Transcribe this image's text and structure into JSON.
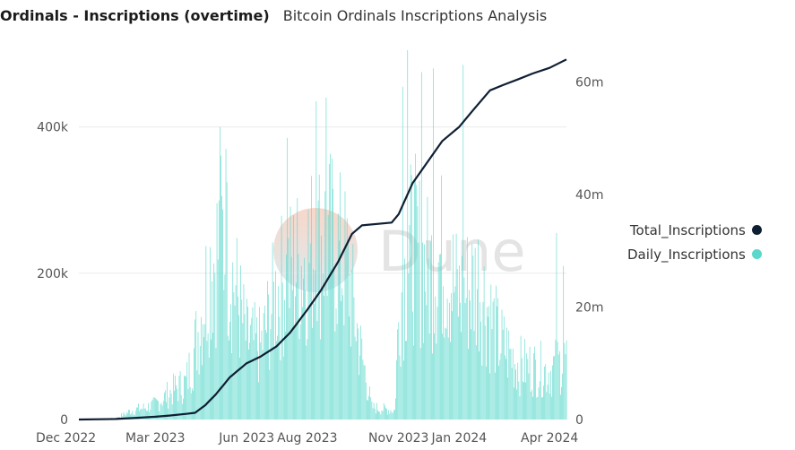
{
  "header": {
    "title": "Ordinals - Inscriptions (overtime)",
    "subtitle": "Bitcoin Ordinals Inscriptions Analysis"
  },
  "watermark": {
    "text": "Dune"
  },
  "colors": {
    "daily": "#5ad8cc",
    "total": "#0f1f33",
    "grid": "#ececec"
  },
  "chart_data": {
    "type": "bar",
    "x_start": "2022-12-14",
    "x_end": "2024-04-18",
    "x_ticks": [
      {
        "date": "2022-12-01",
        "label": "Dec 2022"
      },
      {
        "date": "2023-03-01",
        "label": "Mar 2023"
      },
      {
        "date": "2023-06-01",
        "label": "Jun 2023"
      },
      {
        "date": "2023-08-01",
        "label": "Aug 2023"
      },
      {
        "date": "2023-11-01",
        "label": "Nov 2023"
      },
      {
        "date": "2024-01-01",
        "label": "Jan 2024"
      },
      {
        "date": "2024-04-01",
        "label": "Apr 2024"
      }
    ],
    "y_left": {
      "range": [
        0,
        500000
      ],
      "ticks": [
        {
          "v": 0,
          "label": "0"
        },
        {
          "v": 200000,
          "label": "200k"
        },
        {
          "v": 400000,
          "label": "400k"
        }
      ]
    },
    "y_right": {
      "range": [
        0,
        65000000
      ],
      "ticks": [
        {
          "v": 0,
          "label": "0"
        },
        {
          "v": 20000000,
          "label": "20m"
        },
        {
          "v": 40000000,
          "label": "40m"
        },
        {
          "v": 60000000,
          "label": "60m"
        }
      ]
    },
    "grid": true,
    "legend_position": "right",
    "series": [
      {
        "name": "Total_Inscriptions",
        "type": "line",
        "axis": "right",
        "points": [
          [
            "2022-12-14",
            0
          ],
          [
            "2023-01-20",
            0.1
          ],
          [
            "2023-02-10",
            0.3
          ],
          [
            "2023-03-01",
            0.5
          ],
          [
            "2023-03-15",
            0.7
          ],
          [
            "2023-04-01",
            1.0
          ],
          [
            "2023-04-10",
            1.2
          ],
          [
            "2023-04-20",
            2.5
          ],
          [
            "2023-05-01",
            4.5
          ],
          [
            "2023-05-15",
            7.5
          ],
          [
            "2023-06-01",
            10.0
          ],
          [
            "2023-06-15",
            11.2
          ],
          [
            "2023-07-01",
            13.0
          ],
          [
            "2023-07-15",
            15.5
          ],
          [
            "2023-08-01",
            19.5
          ],
          [
            "2023-08-15",
            23.0
          ],
          [
            "2023-09-01",
            28.0
          ],
          [
            "2023-09-15",
            33.0
          ],
          [
            "2023-09-25",
            34.5
          ],
          [
            "2023-10-25",
            35.0
          ],
          [
            "2023-11-01",
            36.5
          ],
          [
            "2023-11-15",
            42.0
          ],
          [
            "2023-12-01",
            46.0
          ],
          [
            "2023-12-15",
            49.5
          ],
          [
            "2024-01-01",
            52.0
          ],
          [
            "2024-01-15",
            55.0
          ],
          [
            "2024-02-01",
            58.5
          ],
          [
            "2024-02-15",
            59.5
          ],
          [
            "2024-03-01",
            60.5
          ],
          [
            "2024-03-15",
            61.5
          ],
          [
            "2024-04-01",
            62.5
          ],
          [
            "2024-04-18",
            64.0
          ]
        ],
        "unit": "millions"
      },
      {
        "name": "Daily_Inscriptions",
        "type": "bar",
        "axis": "left",
        "profile": [
          [
            "2022-12-14",
            0
          ],
          [
            "2023-01-20",
            2
          ],
          [
            "2023-02-05",
            15
          ],
          [
            "2023-02-20",
            20
          ],
          [
            "2023-03-01",
            25
          ],
          [
            "2023-03-20",
            50
          ],
          [
            "2023-04-01",
            60
          ],
          [
            "2023-04-10",
            120
          ],
          [
            "2023-04-25",
            250
          ],
          [
            "2023-05-08",
            300
          ],
          [
            "2023-05-20",
            220
          ],
          [
            "2023-06-01",
            130
          ],
          [
            "2023-06-15",
            120
          ],
          [
            "2023-07-01",
            210
          ],
          [
            "2023-07-15",
            240
          ],
          [
            "2023-08-01",
            270
          ],
          [
            "2023-08-20",
            300
          ],
          [
            "2023-09-10",
            250
          ],
          [
            "2023-09-22",
            130
          ],
          [
            "2023-10-05",
            20
          ],
          [
            "2023-10-28",
            15
          ],
          [
            "2023-11-02",
            200
          ],
          [
            "2023-11-15",
            290
          ],
          [
            "2023-12-01",
            240
          ],
          [
            "2023-12-15",
            270
          ],
          [
            "2024-01-01",
            200
          ],
          [
            "2024-01-20",
            230
          ],
          [
            "2024-02-10",
            130
          ],
          [
            "2024-03-01",
            90
          ],
          [
            "2024-04-01",
            80
          ],
          [
            "2024-04-18",
            100
          ]
        ],
        "peaks": [
          [
            "2023-05-05",
            400
          ],
          [
            "2023-05-11",
            370
          ],
          [
            "2023-07-12",
            385
          ],
          [
            "2023-08-10",
            435
          ],
          [
            "2023-08-20",
            440
          ],
          [
            "2023-11-05",
            455
          ],
          [
            "2023-11-10",
            505
          ],
          [
            "2023-11-24",
            475
          ],
          [
            "2023-12-06",
            480
          ],
          [
            "2024-01-05",
            485
          ],
          [
            "2024-04-08",
            255
          ],
          [
            "2024-04-15",
            210
          ]
        ],
        "unit": "thousands"
      }
    ]
  }
}
